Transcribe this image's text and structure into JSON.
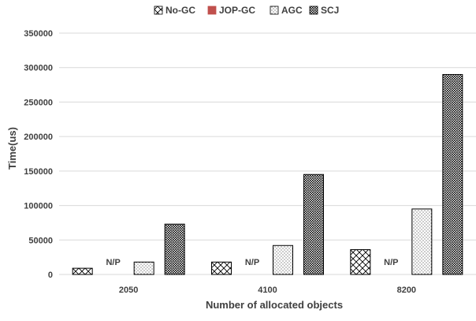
{
  "chart_data": {
    "type": "bar",
    "title": "",
    "xlabel": "Number of allocated objects",
    "ylabel": "Time(us)",
    "categories": [
      "2050",
      "4100",
      "8200"
    ],
    "ylim": [
      0,
      350000
    ],
    "yticks": [
      0,
      50000,
      100000,
      150000,
      200000,
      250000,
      300000,
      350000
    ],
    "grid": true,
    "legend_position": "top",
    "series": [
      {
        "name": "No-GC",
        "values": [
          9000,
          18000,
          36000
        ],
        "pattern": "diagonal-cross",
        "color": "#000000"
      },
      {
        "name": "JOP-GC",
        "values": [
          null,
          null,
          null
        ],
        "pattern": "solid",
        "color": "#c0504d"
      },
      {
        "name": "AGC",
        "values": [
          18000,
          42000,
          95000
        ],
        "pattern": "dots",
        "color": "#000000"
      },
      {
        "name": "SCJ",
        "values": [
          73000,
          145000,
          290000
        ],
        "pattern": "dense-checker",
        "color": "#000000"
      }
    ],
    "annotations": [
      {
        "category": "2050",
        "series": "JOP-GC",
        "text": "N/P"
      },
      {
        "category": "4100",
        "series": "JOP-GC",
        "text": "N/P"
      },
      {
        "category": "8200",
        "series": "JOP-GC",
        "text": "N/P"
      }
    ]
  }
}
